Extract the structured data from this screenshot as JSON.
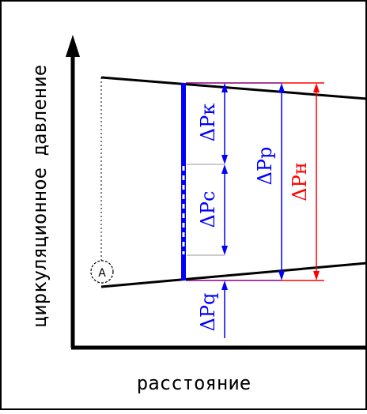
{
  "axes": {
    "x_label": "расстояние",
    "y_label": "циркуляционное давление"
  },
  "labels": {
    "dp_k": "ΔPк",
    "dp_c": "ΔPс",
    "dp_q": "ΔPq",
    "dp_p": "ΔPр",
    "dp_n": "ΔPн",
    "circle_marker": "A"
  },
  "colors": {
    "blue": "#0000ff",
    "red": "#ff0000",
    "black": "#000000",
    "purple": "#800080"
  }
}
